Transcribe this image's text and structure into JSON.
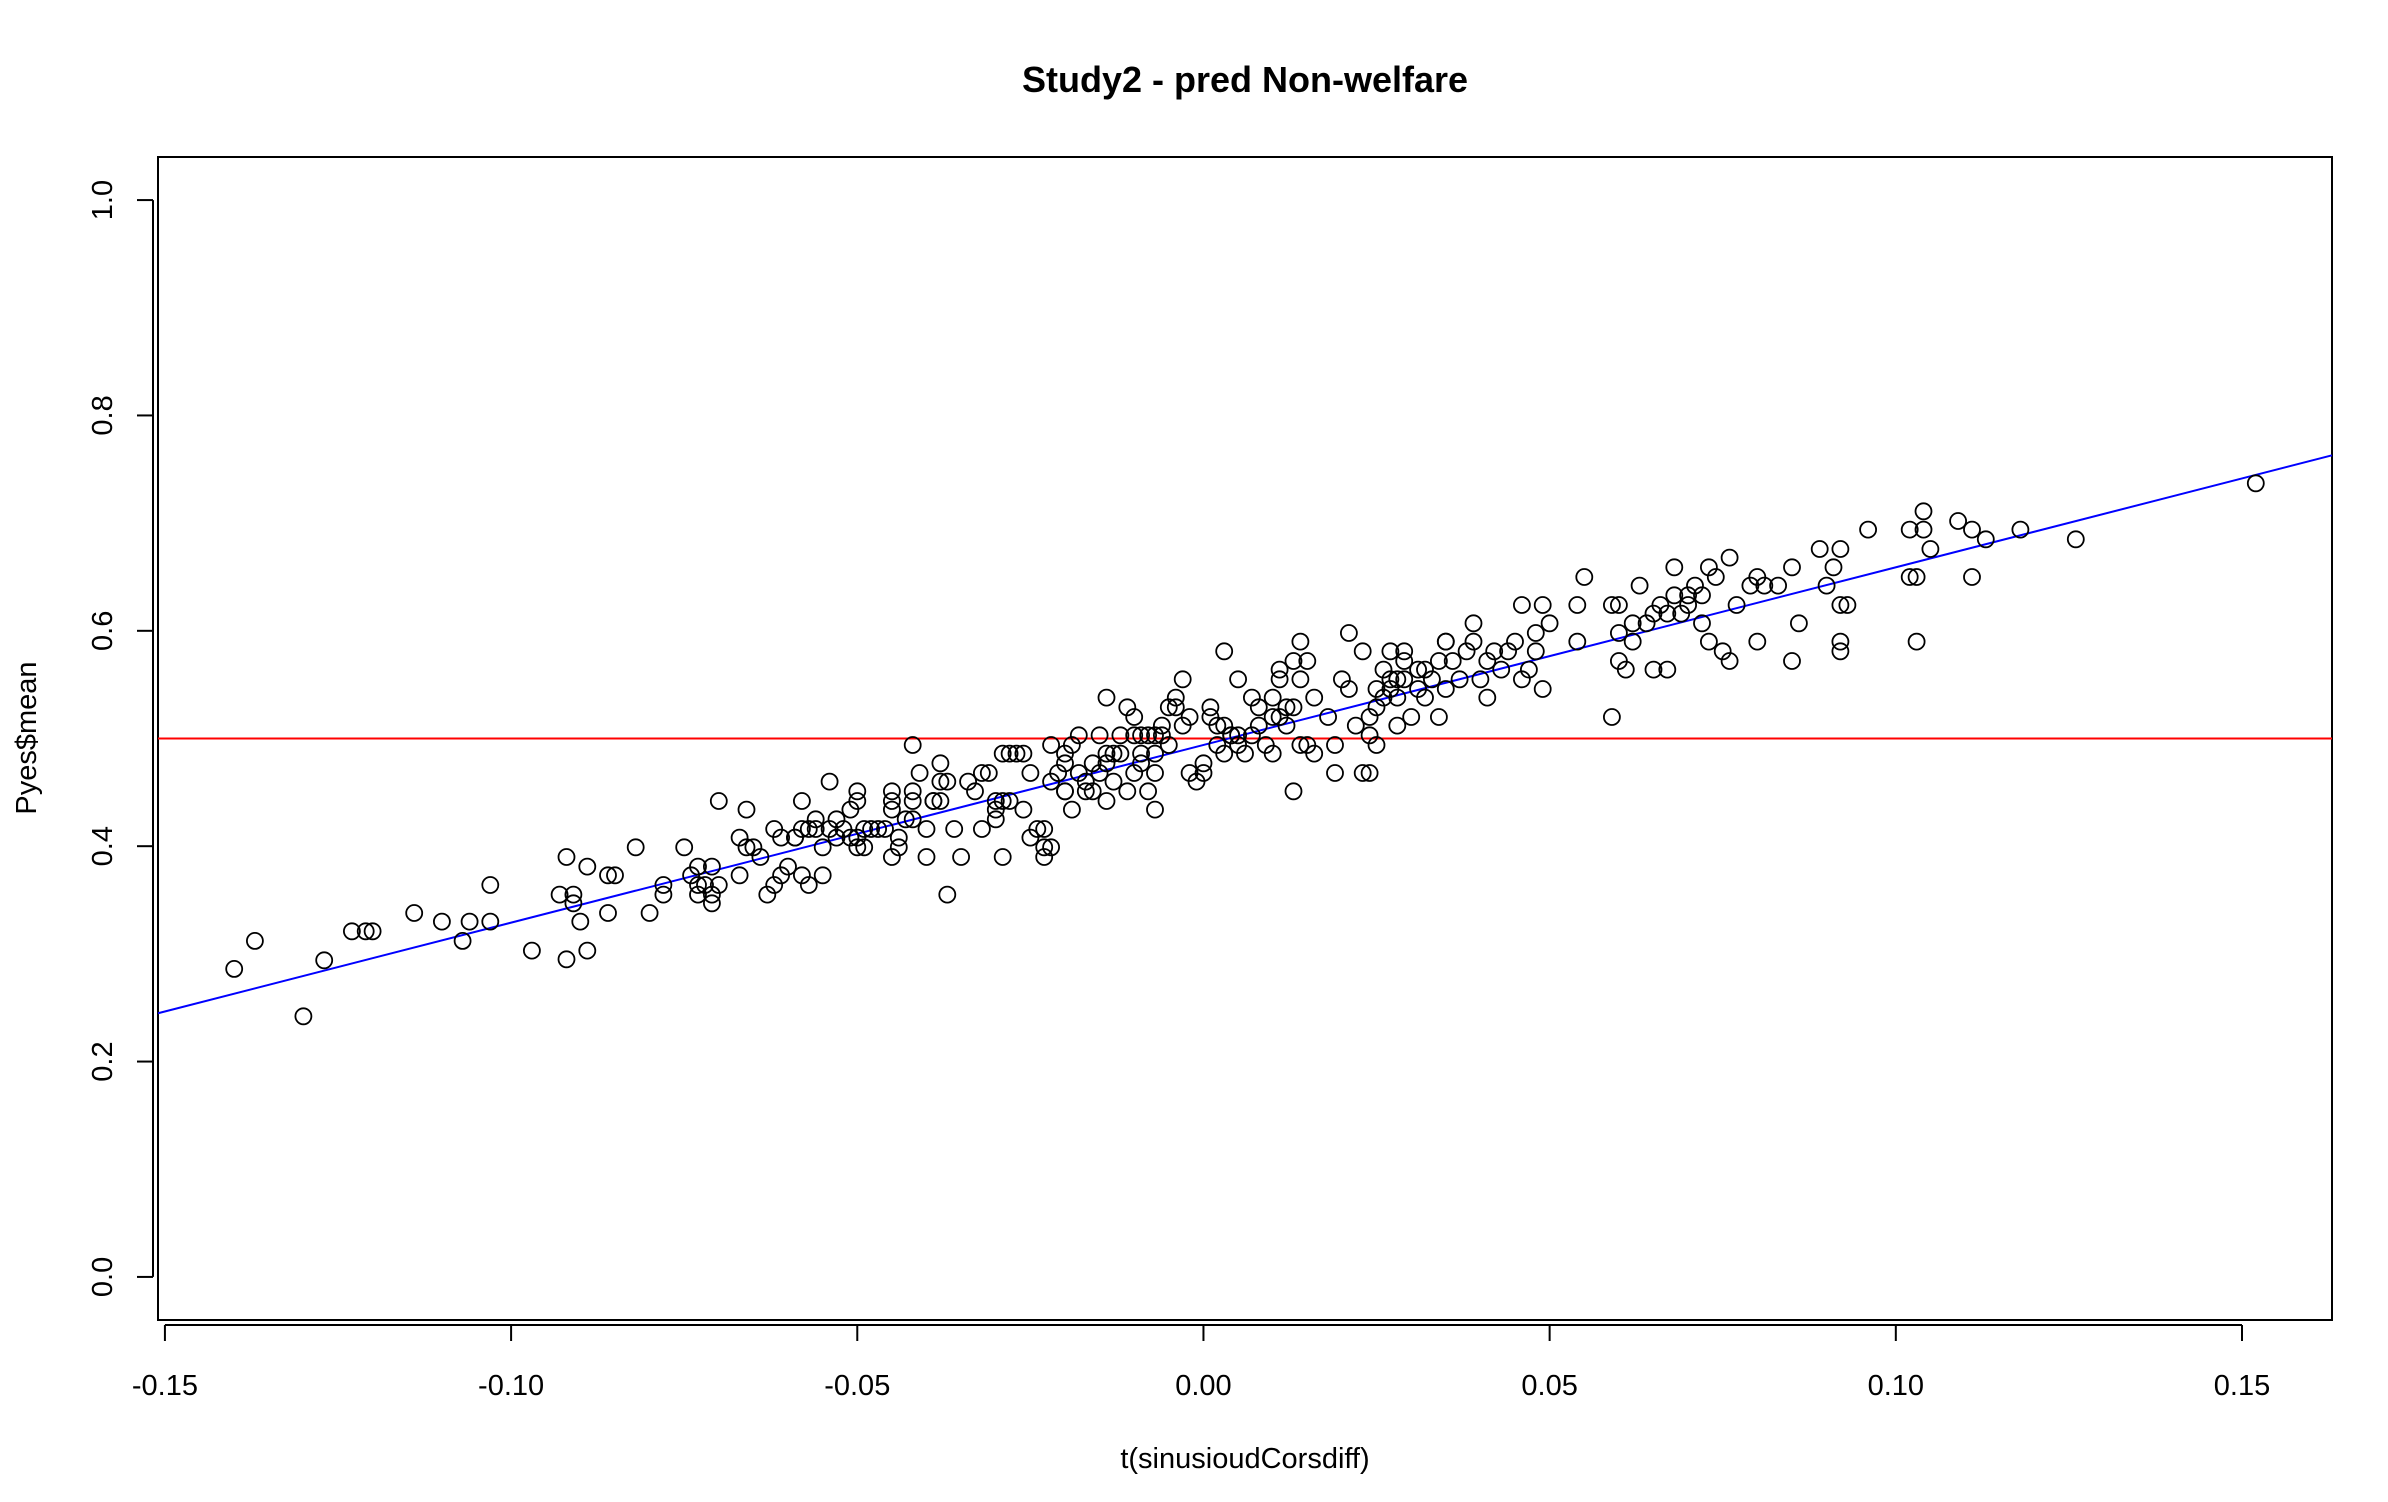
{
  "chart_data": {
    "type": "scatter",
    "title": "Study2 - pred Non-welfare",
    "xlabel": "t(sinusioudCorsdiff)",
    "ylabel": "Pyes$mean",
    "xlim": [
      -0.151,
      0.163
    ],
    "ylim": [
      -0.04,
      1.04
    ],
    "x_ticks": [
      -0.15,
      -0.1,
      -0.05,
      0.0,
      0.05,
      0.1,
      0.15
    ],
    "x_tick_labels": [
      "-0.15",
      "-0.10",
      "-0.05",
      "0.00",
      "0.05",
      "0.10",
      "0.15"
    ],
    "y_ticks": [
      0.0,
      0.2,
      0.4,
      0.6,
      0.8,
      1.0
    ],
    "y_tick_labels": [
      "0.0",
      "0.2",
      "0.4",
      "0.6",
      "0.8",
      "1.0"
    ],
    "point_color": "#000000",
    "reference_lines": [
      {
        "type": "horizontal",
        "y": 0.5,
        "color": "#ff0000"
      },
      {
        "type": "regression",
        "intercept": 0.494,
        "slope": 1.65,
        "color": "#0000ff"
      }
    ],
    "points": [
      [
        -0.14,
        0.286
      ],
      [
        -0.137,
        0.312
      ],
      [
        -0.13,
        0.242
      ],
      [
        -0.127,
        0.294
      ],
      [
        -0.123,
        0.321
      ],
      [
        -0.121,
        0.321
      ],
      [
        -0.12,
        0.321
      ],
      [
        -0.114,
        0.338
      ],
      [
        -0.11,
        0.33
      ],
      [
        -0.107,
        0.312
      ],
      [
        -0.106,
        0.33
      ],
      [
        -0.103,
        0.364
      ],
      [
        -0.103,
        0.33
      ],
      [
        -0.097,
        0.303
      ],
      [
        -0.093,
        0.355
      ],
      [
        -0.092,
        0.295
      ],
      [
        -0.092,
        0.39
      ],
      [
        -0.091,
        0.355
      ],
      [
        -0.091,
        0.347
      ],
      [
        -0.09,
        0.33
      ],
      [
        -0.089,
        0.381
      ],
      [
        -0.089,
        0.303
      ],
      [
        -0.086,
        0.373
      ],
      [
        -0.086,
        0.338
      ],
      [
        -0.085,
        0.373
      ],
      [
        -0.082,
        0.399
      ],
      [
        -0.08,
        0.338
      ],
      [
        -0.078,
        0.364
      ],
      [
        -0.078,
        0.355
      ],
      [
        -0.075,
        0.399
      ],
      [
        -0.074,
        0.373
      ],
      [
        -0.073,
        0.381
      ],
      [
        -0.073,
        0.364
      ],
      [
        -0.073,
        0.355
      ],
      [
        -0.072,
        0.364
      ],
      [
        -0.071,
        0.381
      ],
      [
        -0.071,
        0.355
      ],
      [
        -0.071,
        0.347
      ],
      [
        -0.07,
        0.442
      ],
      [
        -0.07,
        0.364
      ],
      [
        -0.067,
        0.408
      ],
      [
        -0.067,
        0.373
      ],
      [
        -0.066,
        0.434
      ],
      [
        -0.066,
        0.399
      ],
      [
        -0.065,
        0.399
      ],
      [
        -0.064,
        0.39
      ],
      [
        -0.063,
        0.355
      ],
      [
        -0.062,
        0.416
      ],
      [
        -0.062,
        0.364
      ],
      [
        -0.061,
        0.373
      ],
      [
        -0.061,
        0.408
      ],
      [
        -0.06,
        0.381
      ],
      [
        -0.059,
        0.408
      ],
      [
        -0.059,
        0.408
      ],
      [
        -0.058,
        0.416
      ],
      [
        -0.058,
        0.442
      ],
      [
        -0.058,
        0.373
      ],
      [
        -0.057,
        0.416
      ],
      [
        -0.057,
        0.364
      ],
      [
        -0.056,
        0.416
      ],
      [
        -0.056,
        0.425
      ],
      [
        -0.055,
        0.373
      ],
      [
        -0.055,
        0.399
      ],
      [
        -0.054,
        0.46
      ],
      [
        -0.054,
        0.416
      ],
      [
        -0.053,
        0.425
      ],
      [
        -0.053,
        0.408
      ],
      [
        -0.052,
        0.416
      ],
      [
        -0.051,
        0.408
      ],
      [
        -0.051,
        0.434
      ],
      [
        -0.05,
        0.451
      ],
      [
        -0.05,
        0.399
      ],
      [
        -0.05,
        0.442
      ],
      [
        -0.05,
        0.408
      ],
      [
        -0.049,
        0.399
      ],
      [
        -0.049,
        0.416
      ],
      [
        -0.048,
        0.416
      ],
      [
        -0.047,
        0.416
      ],
      [
        -0.046,
        0.416
      ],
      [
        -0.045,
        0.39
      ],
      [
        -0.045,
        0.451
      ],
      [
        -0.045,
        0.442
      ],
      [
        -0.045,
        0.434
      ],
      [
        -0.044,
        0.399
      ],
      [
        -0.044,
        0.408
      ],
      [
        -0.043,
        0.425
      ],
      [
        -0.042,
        0.425
      ],
      [
        -0.042,
        0.494
      ],
      [
        -0.042,
        0.451
      ],
      [
        -0.042,
        0.442
      ],
      [
        -0.041,
        0.468
      ],
      [
        -0.04,
        0.416
      ],
      [
        -0.04,
        0.39
      ],
      [
        -0.039,
        0.442
      ],
      [
        -0.039,
        0.442
      ],
      [
        -0.038,
        0.46
      ],
      [
        -0.038,
        0.477
      ],
      [
        -0.038,
        0.442
      ],
      [
        -0.037,
        0.46
      ],
      [
        -0.037,
        0.355
      ],
      [
        -0.036,
        0.416
      ],
      [
        -0.035,
        0.39
      ],
      [
        -0.034,
        0.46
      ],
      [
        -0.033,
        0.451
      ],
      [
        -0.032,
        0.468
      ],
      [
        -0.032,
        0.416
      ],
      [
        -0.031,
        0.468
      ],
      [
        -0.03,
        0.434
      ],
      [
        -0.03,
        0.442
      ],
      [
        -0.03,
        0.425
      ],
      [
        -0.029,
        0.486
      ],
      [
        -0.029,
        0.442
      ],
      [
        -0.029,
        0.39
      ],
      [
        -0.028,
        0.486
      ],
      [
        -0.028,
        0.442
      ],
      [
        -0.027,
        0.486
      ],
      [
        -0.026,
        0.486
      ],
      [
        -0.026,
        0.434
      ],
      [
        -0.025,
        0.468
      ],
      [
        -0.025,
        0.408
      ],
      [
        -0.024,
        0.416
      ],
      [
        -0.023,
        0.416
      ],
      [
        -0.023,
        0.39
      ],
      [
        -0.023,
        0.399
      ],
      [
        -0.022,
        0.494
      ],
      [
        -0.022,
        0.46
      ],
      [
        -0.022,
        0.399
      ],
      [
        -0.021,
        0.468
      ],
      [
        -0.02,
        0.451
      ],
      [
        -0.02,
        0.477
      ],
      [
        -0.02,
        0.451
      ],
      [
        -0.02,
        0.486
      ],
      [
        -0.019,
        0.494
      ],
      [
        -0.019,
        0.434
      ],
      [
        -0.018,
        0.468
      ],
      [
        -0.018,
        0.503
      ],
      [
        -0.017,
        0.46
      ],
      [
        -0.017,
        0.451
      ],
      [
        -0.016,
        0.477
      ],
      [
        -0.016,
        0.451
      ],
      [
        -0.015,
        0.468
      ],
      [
        -0.015,
        0.503
      ],
      [
        -0.014,
        0.486
      ],
      [
        -0.014,
        0.538
      ],
      [
        -0.014,
        0.477
      ],
      [
        -0.014,
        0.442
      ],
      [
        -0.013,
        0.46
      ],
      [
        -0.013,
        0.486
      ],
      [
        -0.012,
        0.503
      ],
      [
        -0.012,
        0.486
      ],
      [
        -0.011,
        0.451
      ],
      [
        -0.011,
        0.529
      ],
      [
        -0.01,
        0.52
      ],
      [
        -0.01,
        0.468
      ],
      [
        -0.01,
        0.503
      ],
      [
        -0.009,
        0.477
      ],
      [
        -0.009,
        0.503
      ],
      [
        -0.009,
        0.486
      ],
      [
        -0.008,
        0.451
      ],
      [
        -0.008,
        0.503
      ],
      [
        -0.007,
        0.503
      ],
      [
        -0.007,
        0.486
      ],
      [
        -0.007,
        0.468
      ],
      [
        -0.007,
        0.434
      ],
      [
        -0.006,
        0.512
      ],
      [
        -0.006,
        0.503
      ],
      [
        -0.005,
        0.529
      ],
      [
        -0.005,
        0.494
      ],
      [
        -0.004,
        0.538
      ],
      [
        -0.004,
        0.529
      ],
      [
        -0.003,
        0.555
      ],
      [
        -0.003,
        0.512
      ],
      [
        -0.002,
        0.468
      ],
      [
        -0.002,
        0.52
      ],
      [
        -0.001,
        0.46
      ],
      [
        0.0,
        0.477
      ],
      [
        0.0,
        0.468
      ],
      [
        0.001,
        0.529
      ],
      [
        0.001,
        0.52
      ],
      [
        0.002,
        0.512
      ],
      [
        0.002,
        0.494
      ],
      [
        0.003,
        0.486
      ],
      [
        0.003,
        0.581
      ],
      [
        0.003,
        0.512
      ],
      [
        0.004,
        0.503
      ],
      [
        0.004,
        0.503
      ],
      [
        0.005,
        0.494
      ],
      [
        0.005,
        0.503
      ],
      [
        0.005,
        0.555
      ],
      [
        0.006,
        0.486
      ],
      [
        0.007,
        0.503
      ],
      [
        0.007,
        0.538
      ],
      [
        0.008,
        0.512
      ],
      [
        0.008,
        0.529
      ],
      [
        0.009,
        0.494
      ],
      [
        0.01,
        0.52
      ],
      [
        0.01,
        0.486
      ],
      [
        0.01,
        0.538
      ],
      [
        0.011,
        0.555
      ],
      [
        0.011,
        0.564
      ],
      [
        0.011,
        0.52
      ],
      [
        0.012,
        0.512
      ],
      [
        0.012,
        0.529
      ],
      [
        0.013,
        0.451
      ],
      [
        0.013,
        0.572
      ],
      [
        0.013,
        0.529
      ],
      [
        0.014,
        0.59
      ],
      [
        0.014,
        0.555
      ],
      [
        0.014,
        0.494
      ],
      [
        0.015,
        0.494
      ],
      [
        0.015,
        0.572
      ],
      [
        0.016,
        0.538
      ],
      [
        0.016,
        0.486
      ],
      [
        0.018,
        0.52
      ],
      [
        0.019,
        0.468
      ],
      [
        0.019,
        0.494
      ],
      [
        0.02,
        0.555
      ],
      [
        0.021,
        0.598
      ],
      [
        0.021,
        0.546
      ],
      [
        0.022,
        0.512
      ],
      [
        0.023,
        0.468
      ],
      [
        0.023,
        0.581
      ],
      [
        0.024,
        0.468
      ],
      [
        0.024,
        0.52
      ],
      [
        0.024,
        0.503
      ],
      [
        0.025,
        0.529
      ],
      [
        0.025,
        0.546
      ],
      [
        0.025,
        0.494
      ],
      [
        0.026,
        0.538
      ],
      [
        0.026,
        0.564
      ],
      [
        0.027,
        0.581
      ],
      [
        0.027,
        0.546
      ],
      [
        0.027,
        0.555
      ],
      [
        0.028,
        0.512
      ],
      [
        0.028,
        0.555
      ],
      [
        0.028,
        0.538
      ],
      [
        0.029,
        0.572
      ],
      [
        0.029,
        0.555
      ],
      [
        0.029,
        0.581
      ],
      [
        0.03,
        0.52
      ],
      [
        0.031,
        0.564
      ],
      [
        0.031,
        0.546
      ],
      [
        0.032,
        0.538
      ],
      [
        0.032,
        0.564
      ],
      [
        0.033,
        0.555
      ],
      [
        0.034,
        0.572
      ],
      [
        0.034,
        0.52
      ],
      [
        0.035,
        0.59
      ],
      [
        0.035,
        0.59
      ],
      [
        0.035,
        0.546
      ],
      [
        0.036,
        0.572
      ],
      [
        0.037,
        0.555
      ],
      [
        0.038,
        0.581
      ],
      [
        0.039,
        0.607
      ],
      [
        0.039,
        0.59
      ],
      [
        0.04,
        0.555
      ],
      [
        0.041,
        0.538
      ],
      [
        0.041,
        0.572
      ],
      [
        0.042,
        0.581
      ],
      [
        0.043,
        0.564
      ],
      [
        0.044,
        0.581
      ],
      [
        0.045,
        0.59
      ],
      [
        0.046,
        0.624
      ],
      [
        0.046,
        0.555
      ],
      [
        0.047,
        0.564
      ],
      [
        0.048,
        0.598
      ],
      [
        0.048,
        0.581
      ],
      [
        0.049,
        0.546
      ],
      [
        0.049,
        0.624
      ],
      [
        0.05,
        0.607
      ],
      [
        0.054,
        0.59
      ],
      [
        0.054,
        0.624
      ],
      [
        0.055,
        0.65
      ],
      [
        0.059,
        0.52
      ],
      [
        0.059,
        0.624
      ],
      [
        0.06,
        0.572
      ],
      [
        0.06,
        0.598
      ],
      [
        0.06,
        0.624
      ],
      [
        0.061,
        0.564
      ],
      [
        0.062,
        0.59
      ],
      [
        0.062,
        0.607
      ],
      [
        0.063,
        0.642
      ],
      [
        0.064,
        0.607
      ],
      [
        0.065,
        0.616
      ],
      [
        0.065,
        0.564
      ],
      [
        0.066,
        0.624
      ],
      [
        0.067,
        0.616
      ],
      [
        0.067,
        0.564
      ],
      [
        0.068,
        0.633
      ],
      [
        0.068,
        0.659
      ],
      [
        0.069,
        0.616
      ],
      [
        0.07,
        0.624
      ],
      [
        0.07,
        0.633
      ],
      [
        0.071,
        0.642
      ],
      [
        0.072,
        0.633
      ],
      [
        0.072,
        0.607
      ],
      [
        0.073,
        0.659
      ],
      [
        0.073,
        0.59
      ],
      [
        0.074,
        0.65
      ],
      [
        0.075,
        0.581
      ],
      [
        0.076,
        0.668
      ],
      [
        0.076,
        0.572
      ],
      [
        0.077,
        0.624
      ],
      [
        0.079,
        0.642
      ],
      [
        0.08,
        0.65
      ],
      [
        0.08,
        0.59
      ],
      [
        0.081,
        0.642
      ],
      [
        0.083,
        0.642
      ],
      [
        0.085,
        0.659
      ],
      [
        0.085,
        0.572
      ],
      [
        0.086,
        0.607
      ],
      [
        0.089,
        0.676
      ],
      [
        0.09,
        0.642
      ],
      [
        0.091,
        0.659
      ],
      [
        0.092,
        0.676
      ],
      [
        0.092,
        0.581
      ],
      [
        0.092,
        0.59
      ],
      [
        0.092,
        0.624
      ],
      [
        0.093,
        0.624
      ],
      [
        0.096,
        0.694
      ],
      [
        0.102,
        0.694
      ],
      [
        0.102,
        0.65
      ],
      [
        0.103,
        0.59
      ],
      [
        0.103,
        0.65
      ],
      [
        0.104,
        0.694
      ],
      [
        0.104,
        0.711
      ],
      [
        0.105,
        0.676
      ],
      [
        0.109,
        0.702
      ],
      [
        0.111,
        0.694
      ],
      [
        0.111,
        0.65
      ],
      [
        0.113,
        0.685
      ],
      [
        0.118,
        0.694
      ],
      [
        0.126,
        0.685
      ],
      [
        0.152,
        0.737
      ]
    ]
  }
}
